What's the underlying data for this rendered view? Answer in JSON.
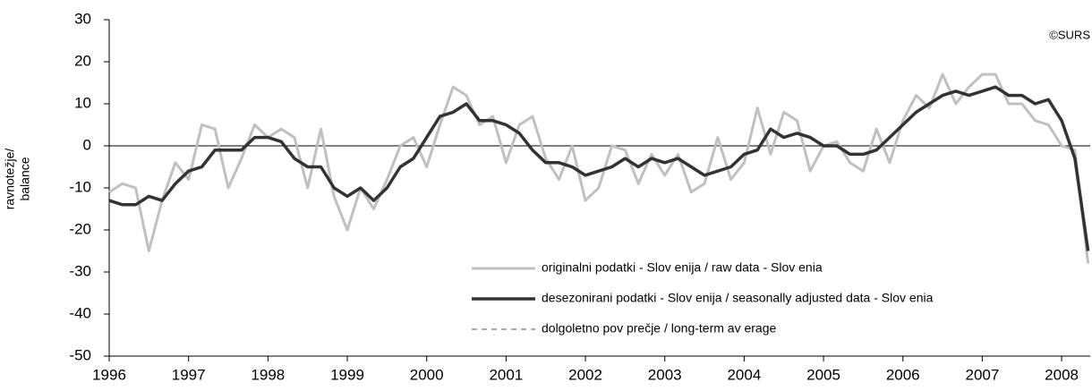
{
  "chart_data": {
    "type": "line",
    "ylabel": [
      "ravnotežje/",
      "balance"
    ],
    "annotation": "©SURS",
    "x": [
      1996,
      1996.167,
      1996.333,
      1996.5,
      1996.667,
      1996.833,
      1997,
      1997.167,
      1997.333,
      1997.5,
      1997.667,
      1997.833,
      1998,
      1998.167,
      1998.333,
      1998.5,
      1998.667,
      1998.833,
      1999,
      1999.167,
      1999.333,
      1999.5,
      1999.667,
      1999.833,
      2000,
      2000.167,
      2000.333,
      2000.5,
      2000.667,
      2000.833,
      2001,
      2001.167,
      2001.333,
      2001.5,
      2001.667,
      2001.833,
      2002,
      2002.167,
      2002.333,
      2002.5,
      2002.667,
      2002.833,
      2003,
      2003.167,
      2003.333,
      2003.5,
      2003.667,
      2003.833,
      2004,
      2004.167,
      2004.333,
      2004.5,
      2004.667,
      2004.833,
      2005,
      2005.167,
      2005.333,
      2005.5,
      2005.667,
      2005.833,
      2006,
      2006.167,
      2006.333,
      2006.5,
      2006.667,
      2006.833,
      2007,
      2007.167,
      2007.333,
      2007.5,
      2007.667,
      2007.833,
      2008,
      2008.167,
      2008.333
    ],
    "series": [
      {
        "name": "originalni podatki - Slov enija / raw data - Slov enia",
        "color": "#c0c0c0",
        "width": 3,
        "dash": false,
        "values": [
          -11,
          -9,
          -10,
          -25,
          -13,
          -4,
          -8,
          5,
          4,
          -10,
          -3,
          5,
          2,
          4,
          2,
          -10,
          4,
          -12,
          -20,
          -10,
          -15,
          -8,
          0,
          2,
          -5,
          5,
          14,
          12,
          5,
          7,
          -4,
          5,
          7,
          -3,
          -8,
          0,
          -13,
          -10,
          0,
          -1,
          -9,
          -2,
          -7,
          -2,
          -11,
          -9,
          2,
          -8,
          -4,
          9,
          -2,
          8,
          6,
          -6,
          0,
          1,
          -4,
          -6,
          4,
          -4,
          6,
          12,
          9,
          17,
          10,
          14,
          17,
          17,
          10,
          10,
          6,
          5,
          0,
          -1,
          -28
        ]
      },
      {
        "name": "desezonirani podatki - Slov enija / seasonally adjusted data - Slov enia",
        "color": "#333333",
        "width": 3.5,
        "dash": false,
        "values": [
          -13,
          -14,
          -14,
          -12,
          -13,
          -9,
          -6,
          -5,
          -1,
          -1,
          -1,
          2,
          2,
          1,
          -3,
          -5,
          -5,
          -10,
          -12,
          -10,
          -13,
          -10,
          -5,
          -3,
          2,
          7,
          8,
          10,
          6,
          6,
          5,
          3,
          -1,
          -4,
          -4,
          -5,
          -7,
          -6,
          -5,
          -3,
          -5,
          -3,
          -4,
          -3,
          -5,
          -7,
          -6,
          -5,
          -2,
          -1,
          4,
          2,
          3,
          2,
          0,
          0,
          -2,
          -2,
          -1,
          2,
          5,
          8,
          10,
          12,
          13,
          12,
          13,
          14,
          12,
          12,
          10,
          11,
          6,
          -3,
          -25
        ]
      },
      {
        "name": "dolgoletno pov prečje / long-term av erage",
        "color": "#555555",
        "width": 1,
        "dash": true,
        "values": [
          null,
          null,
          null,
          null,
          null,
          null,
          null,
          null,
          null,
          null,
          null,
          null,
          null,
          null,
          null,
          null,
          null,
          null,
          null,
          null,
          null,
          null,
          null,
          null,
          null,
          null,
          null,
          null,
          null,
          null,
          null,
          null,
          null,
          null,
          null,
          null,
          null,
          null,
          null,
          null,
          null,
          null,
          null,
          null,
          null,
          null,
          null,
          null,
          null,
          null,
          null,
          null,
          null,
          null,
          null,
          null,
          null,
          null,
          null,
          null,
          null,
          null,
          null,
          null,
          null,
          null,
          null,
          null,
          null,
          null,
          null,
          null,
          null,
          null,
          null
        ]
      }
    ],
    "xlim": [
      1996,
      2008.36
    ],
    "xticks": [
      1996,
      1997,
      1998,
      1999,
      2000,
      2001,
      2002,
      2003,
      2004,
      2005,
      2006,
      2007,
      2008
    ],
    "ylim": [
      -50,
      30
    ],
    "yticks": [
      -50,
      -40,
      -30,
      -20,
      -10,
      0,
      10,
      20,
      30
    ]
  }
}
